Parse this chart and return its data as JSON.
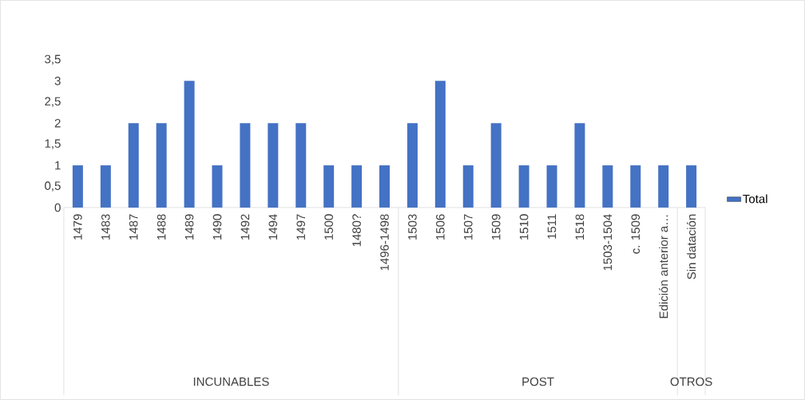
{
  "chart_data": {
    "type": "bar",
    "categories": [
      "1479",
      "1483",
      "1487",
      "1488",
      "1489",
      "1490",
      "1492",
      "1494",
      "1497",
      "1500",
      "1480?",
      "1496-1498",
      "1503",
      "1506",
      "1507",
      "1509",
      "1510",
      "1511",
      "1518",
      "1503-1504",
      "c. 1509",
      "Edición anterior a…",
      "Sin datación"
    ],
    "series": [
      {
        "name": "Total",
        "color": "#4472c4",
        "values": [
          1,
          1,
          2,
          2,
          3,
          1,
          2,
          2,
          2,
          1,
          1,
          1,
          2,
          3,
          1,
          2,
          1,
          1,
          2,
          1,
          1,
          1,
          1
        ]
      }
    ],
    "ylim": [
      0,
      3.5
    ],
    "yticks": [
      0,
      {
        "value": 0.5,
        "label": "0,5"
      },
      1,
      {
        "value": 1.5,
        "label": "1,5"
      },
      2,
      {
        "value": 2.5,
        "label": "2,5"
      },
      3,
      {
        "value": 3.5,
        "label": "3,5"
      }
    ],
    "grid": false,
    "legend": "right",
    "annotations": [
      "INCUNABLES",
      "POST",
      "OTROS"
    ]
  }
}
